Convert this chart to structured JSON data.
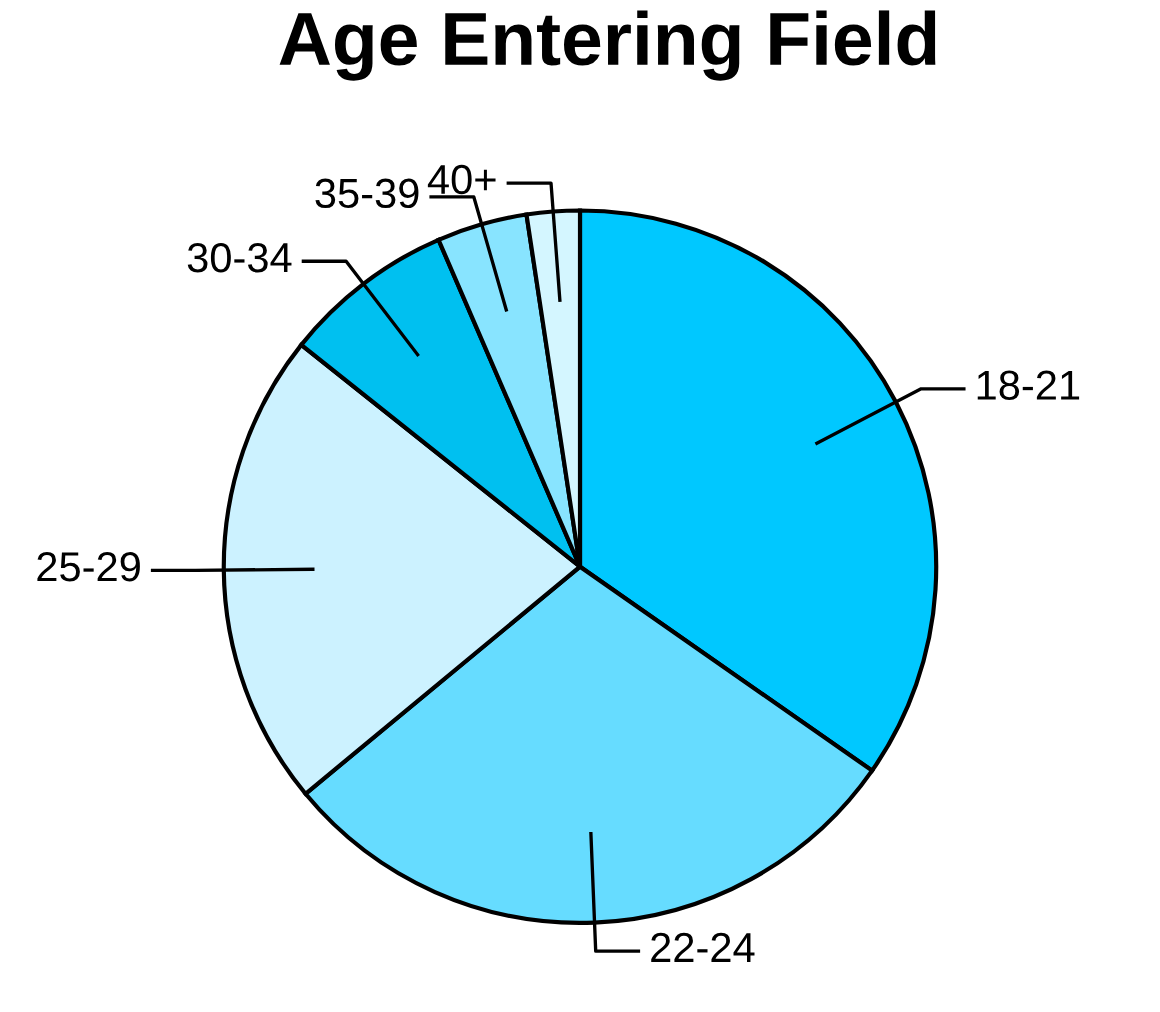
{
  "chart_data": {
    "type": "pie",
    "title": "Age Entering Field",
    "categories": [
      "18-21",
      "22-24",
      "25-29",
      "30-34",
      "35-39",
      "40+"
    ],
    "values": [
      34.7,
      29.3,
      21.7,
      7.8,
      4.1,
      2.4
    ],
    "colors": [
      "#00c8ff",
      "#66dcff",
      "#ccf2ff",
      "#00c0f0",
      "#88e4ff",
      "#d4f6ff"
    ],
    "legend": false
  }
}
